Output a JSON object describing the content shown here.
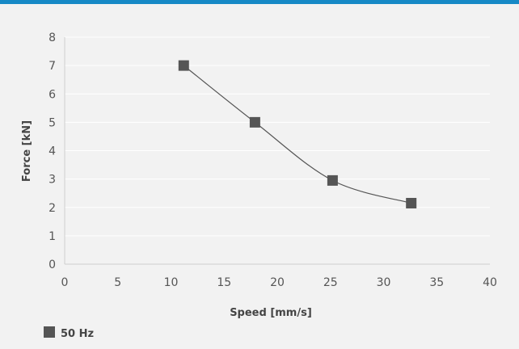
{
  "chart_data": {
    "type": "line",
    "title": "",
    "xlabel": "Speed [mm/s]",
    "ylabel": "Force [kN]",
    "xlim": [
      0,
      40
    ],
    "ylim": [
      0,
      8
    ],
    "x_ticks": [
      0,
      5,
      10,
      15,
      20,
      25,
      30,
      35,
      40
    ],
    "y_ticks": [
      0,
      1,
      2,
      3,
      4,
      5,
      6,
      7,
      8
    ],
    "grid": "horizontal",
    "legend_position": "bottom-left",
    "series": [
      {
        "name": "50 Hz",
        "color": "#555555",
        "marker": "square",
        "smooth": true,
        "x": [
          11.2,
          17.9,
          25.2,
          32.6
        ],
        "y": [
          7.0,
          5.0,
          2.95,
          2.15
        ]
      }
    ]
  },
  "colors": {
    "header_band": "#1689c6",
    "background": "#f2f2f2",
    "gridline": "#ffffff",
    "axis": "#cfcfcf"
  }
}
